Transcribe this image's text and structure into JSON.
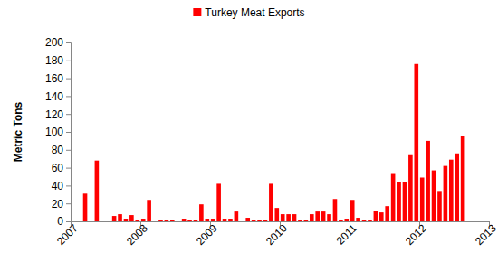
{
  "chart_data": {
    "type": "bar",
    "y_label": "Metric Tons",
    "x": [
      2007.0417,
      2007.125,
      2007.2083,
      2007.2917,
      2007.375,
      2007.4583,
      2007.5417,
      2007.625,
      2007.7083,
      2007.7917,
      2007.875,
      2007.9583,
      2008.0417,
      2008.125,
      2008.2083,
      2008.2917,
      2008.375,
      2008.4583,
      2008.5417,
      2008.625,
      2008.7083,
      2008.7917,
      2008.875,
      2008.9583,
      2009.0417,
      2009.125,
      2009.2083,
      2009.2917,
      2009.375,
      2009.4583,
      2009.5417,
      2009.625,
      2009.7083,
      2009.7917,
      2009.875,
      2009.9583,
      2010.0417,
      2010.125,
      2010.2083,
      2010.2917,
      2010.375,
      2010.4583,
      2010.5417,
      2010.625,
      2010.7083,
      2010.7917,
      2010.875,
      2010.9583,
      2011.0417,
      2011.125,
      2011.2083,
      2011.2917,
      2011.375,
      2011.4583,
      2011.5417,
      2011.625,
      2011.7083,
      2011.7917,
      2011.875,
      2011.9583,
      2012.0417,
      2012.125,
      2012.2083,
      2012.2917,
      2012.375,
      2012.4583,
      2012.5417,
      2012.625,
      2012.7083,
      2012.7917,
      2012.875,
      2012.9583
    ],
    "series": [
      {
        "name": "Turkey Meat Exports",
        "color": "#ff0000",
        "values": [
          0,
          0,
          31,
          0,
          68,
          0,
          0,
          6,
          8,
          3,
          7,
          2,
          3,
          24,
          0,
          2,
          2,
          2,
          0,
          3,
          2,
          2,
          19,
          3,
          3,
          42,
          3,
          3,
          11,
          0,
          4,
          2,
          2,
          2,
          42,
          15,
          8,
          8,
          8,
          1,
          2,
          8,
          11,
          11,
          8,
          25,
          2,
          3,
          24,
          4,
          2,
          2,
          12,
          10,
          17,
          53,
          44,
          44,
          74,
          176,
          49,
          90,
          57,
          34,
          62,
          69,
          76,
          95,
          null,
          null,
          null,
          null
        ]
      }
    ],
    "xlim": [
      2007,
      2013
    ],
    "xticks": [
      2007,
      2008,
      2009,
      2010,
      2011,
      2012,
      2013
    ],
    "ylim": [
      0,
      200
    ],
    "yticks": [
      0,
      20,
      40,
      60,
      80,
      100,
      120,
      140,
      160,
      180,
      200
    ],
    "legend": "top",
    "grid": false
  }
}
